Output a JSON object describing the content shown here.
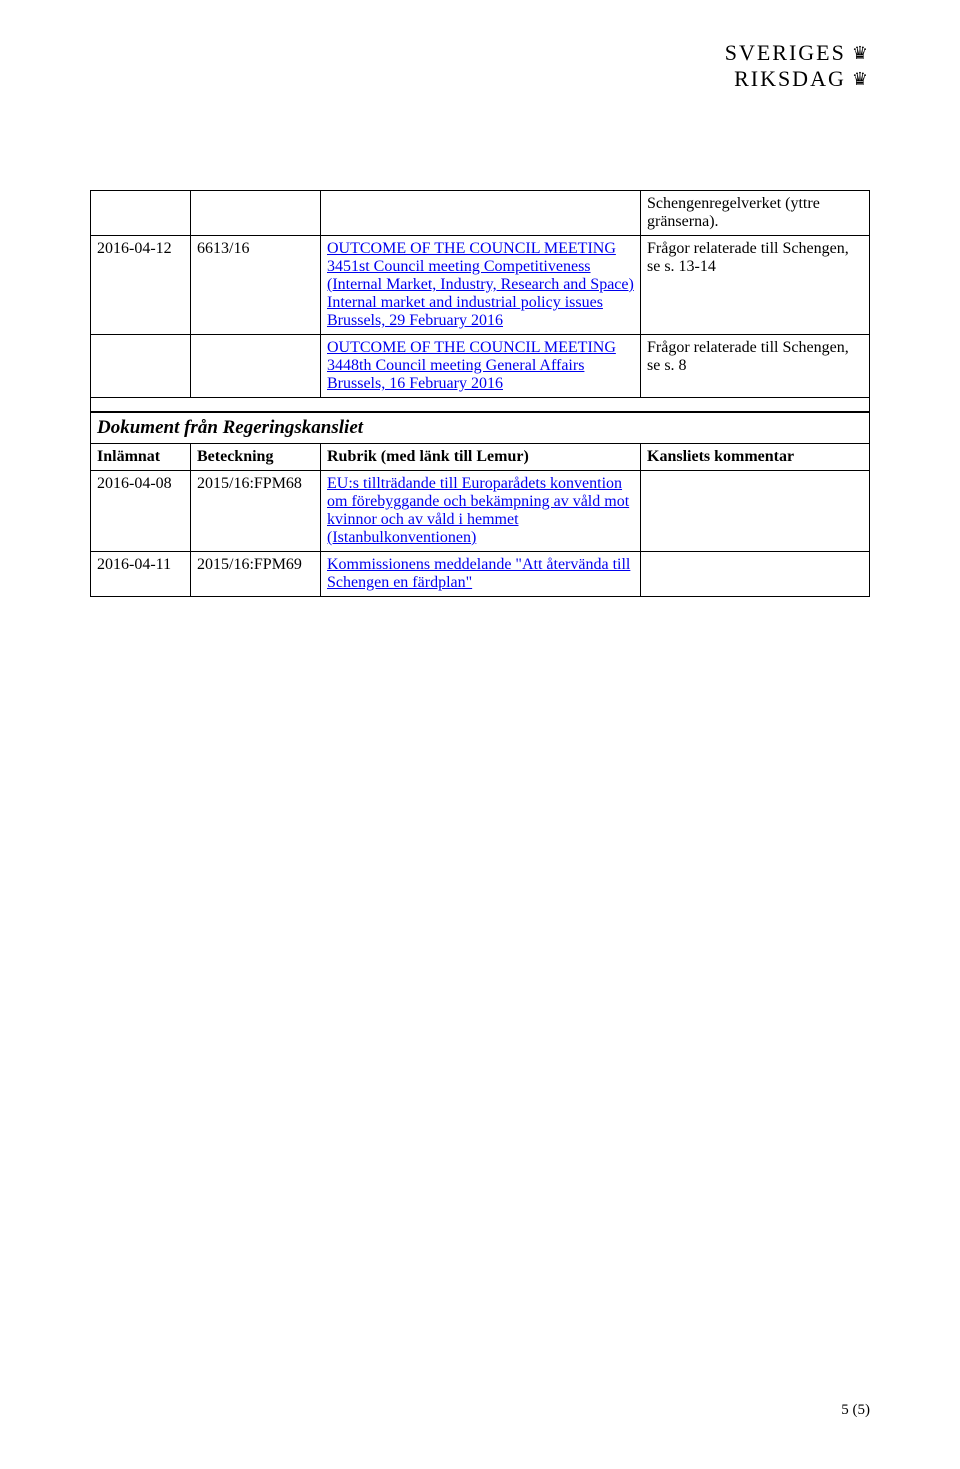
{
  "logo": {
    "line1": "SVERIGES",
    "line2": "RIKSDAG",
    "crown_glyph": "♛"
  },
  "table1": {
    "rows": [
      {
        "date": "",
        "ref": "",
        "title_text": "",
        "title_is_link": false,
        "comment": "Schengenregelverket (yttre gränserna)."
      },
      {
        "date": "2016-04-12",
        "ref": "6613/16",
        "title_text": "OUTCOME OF THE COUNCIL MEETING 3451st Council meeting Competitiveness (Internal Market, Industry, Research and Space) Internal market and industrial policy issues Brussels, 29 February 2016",
        "title_is_link": true,
        "comment": "Frågor relaterade till Schengen, se s. 13-14"
      },
      {
        "date": "",
        "ref": "",
        "title_text": "OUTCOME OF THE COUNCIL MEETING 3448th Council meeting General Affairs Brussels, 16 February 2016",
        "title_is_link": true,
        "comment": "Frågor relaterade till Schengen, se s. 8"
      }
    ]
  },
  "section2": {
    "heading": "Dokument från Regeringskansliet",
    "headers": {
      "col1": "Inlämnat",
      "col2": "Beteckning",
      "col3": "Rubrik (med länk till Lemur)",
      "col4": "Kansliets kommentar"
    },
    "rows": [
      {
        "date": "2016-04-08",
        "ref": "2015/16:FPM68",
        "title_text": "EU:s tillträdande till Europarådets konvention om förebyggande och bekämpning av våld mot kvinnor och av våld i hemmet (Istanbulkonventionen)",
        "comment": ""
      },
      {
        "date": "2016-04-11",
        "ref": "2015/16:FPM69",
        "title_text": "Kommissionens meddelande \"Att återvända till Schengen en färdplan\"",
        "comment": ""
      }
    ]
  },
  "footer": "5 (5)",
  "colors": {
    "link": "#0000ee",
    "text": "#000000",
    "border": "#000000",
    "background": "#ffffff"
  }
}
